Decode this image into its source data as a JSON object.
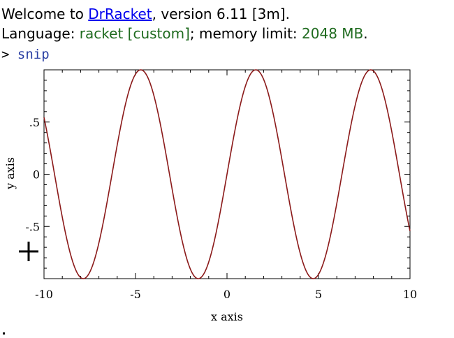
{
  "repl": {
    "welcome_prefix": "Welcome to ",
    "app_link": "DrRacket",
    "welcome_suffix": ", version 6.11 [3m].",
    "language_prefix": "Language: ",
    "language_value": "racket [custom]",
    "memory_prefix": "; memory limit: ",
    "memory_value": "2048 MB",
    "memory_suffix": ".",
    "prompt": ">",
    "input": "snip"
  },
  "colors": {
    "link": "#0000ee",
    "language_green": "#1f6b1f",
    "input_blue": "#2a3fa3",
    "curve": "#8b1a1a"
  },
  "chart_data": {
    "type": "line",
    "function": "sin(x)",
    "series": [
      {
        "color": "#8b1a1a",
        "x": [
          -10,
          -9,
          -8,
          -7,
          -6,
          -5,
          -4,
          -3,
          -2,
          -1,
          0,
          1,
          2,
          3,
          4,
          5,
          6,
          7,
          8,
          9,
          10
        ],
        "y": [
          0.544,
          -0.412,
          -0.989,
          -0.657,
          0.279,
          0.959,
          0.757,
          -0.141,
          -0.909,
          -0.841,
          0,
          0.841,
          0.909,
          0.141,
          -0.757,
          -0.959,
          -0.279,
          0.657,
          0.989,
          0.412,
          -0.544
        ]
      }
    ],
    "xlabel": "x axis",
    "ylabel": "y axis",
    "xlim": [
      -10,
      10
    ],
    "ylim": [
      -1,
      1
    ],
    "x_ticks": [
      {
        "value": -10,
        "label": "-10"
      },
      {
        "value": -5,
        "label": "-5"
      },
      {
        "value": 0,
        "label": "0"
      },
      {
        "value": 5,
        "label": "5"
      },
      {
        "value": 10,
        "label": "10"
      }
    ],
    "y_ticks": [
      {
        "value": 0.5,
        "label": ".5"
      },
      {
        "value": 0,
        "label": "0"
      },
      {
        "value": -0.5,
        "label": "-.5"
      }
    ],
    "grid": false,
    "legend": "none"
  },
  "cursor": {
    "icon": "crosshair-cursor-icon"
  }
}
